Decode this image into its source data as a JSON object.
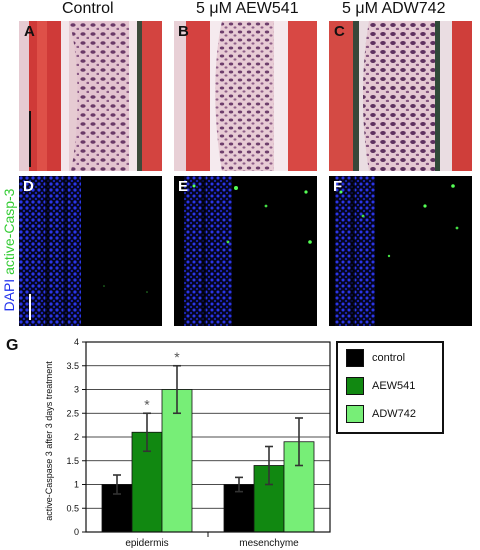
{
  "columns": [
    "Control",
    "5 μM AEW541",
    "5 μM ADW742"
  ],
  "top_panels": [
    {
      "letter": "A"
    },
    {
      "letter": "B"
    },
    {
      "letter": "C"
    }
  ],
  "fluor_panels": [
    {
      "letter": "D"
    },
    {
      "letter": "E"
    },
    {
      "letter": "F"
    }
  ],
  "stain_label": {
    "dapi": "DAPI",
    "casp": "active-Casp-3"
  },
  "colors": {
    "dapi": "#2233ee",
    "casp": "#33dd33"
  },
  "chart_letter": "G",
  "chart_data": {
    "type": "bar",
    "categories": [
      "epidermis",
      "mesenchyme"
    ],
    "series": [
      {
        "name": "control",
        "color": "#000000",
        "values": [
          1.0,
          1.0
        ],
        "errors": [
          0.2,
          0.15
        ],
        "significant": [
          false,
          false
        ]
      },
      {
        "name": "AEW541",
        "color": "#118811",
        "values": [
          2.1,
          1.4
        ],
        "errors": [
          0.4,
          0.4
        ],
        "significant": [
          true,
          false
        ]
      },
      {
        "name": "ADW742",
        "color": "#77ee77",
        "values": [
          3.0,
          1.9
        ],
        "errors": [
          0.5,
          0.5
        ],
        "significant": [
          true,
          false
        ]
      }
    ],
    "ylabel": "active-Caspase 3 after 3 days treatment",
    "ylim": [
      0,
      4
    ],
    "yticks": [
      "0",
      "0.5",
      "1",
      "1.5",
      "2",
      "2.5",
      "3",
      "3.5",
      "4"
    ],
    "significance_mark": "*",
    "grid": true,
    "legend_position": "right"
  }
}
